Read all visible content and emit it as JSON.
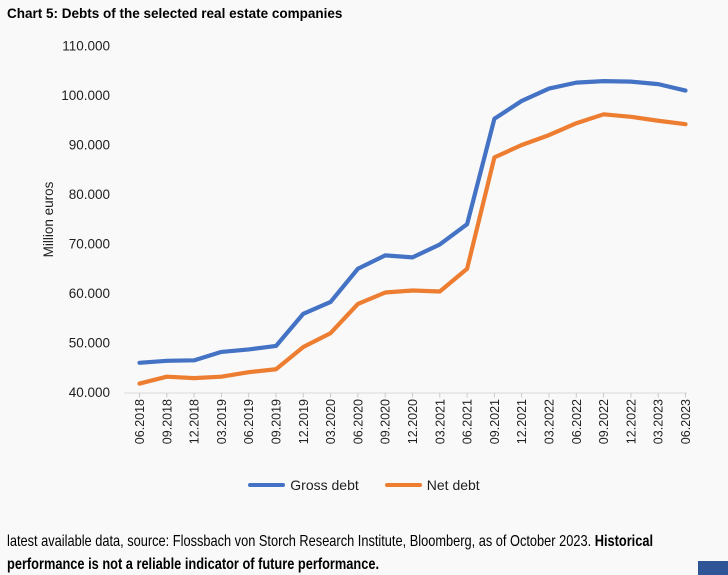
{
  "title": "Chart 5: Debts of the selected real estate companies",
  "chart_data": {
    "type": "line",
    "title": "Chart 5: Debts of the selected real estate companies",
    "xlabel": "",
    "ylabel": "Million euros",
    "ylim": [
      40000,
      110000
    ],
    "y_tick_step": 10000,
    "y_tick_labels": [
      "40.000",
      "50.000",
      "60.000",
      "70.000",
      "80.000",
      "90.000",
      "100.000",
      "110.000"
    ],
    "grid": false,
    "legend_position": "bottom",
    "categories": [
      "06.2018",
      "09.2018",
      "12.2018",
      "03.2019",
      "06.2019",
      "09.2019",
      "12.2019",
      "03.2020",
      "06.2020",
      "09.2020",
      "12.2020",
      "03.2021",
      "06.2021",
      "09.2021",
      "12.2021",
      "03.2022",
      "06.2022",
      "09.2022",
      "12.2022",
      "03.2023",
      "06.2023"
    ],
    "series": [
      {
        "name": "Gross debt",
        "color": "#4472C4",
        "values": [
          46000,
          46400,
          46500,
          48200,
          48700,
          49400,
          55900,
          58300,
          65000,
          67700,
          67300,
          69900,
          74000,
          95300,
          98900,
          101400,
          102600,
          102900,
          102800,
          102300,
          101000
        ]
      },
      {
        "name": "Net debt",
        "color": "#ED7D31",
        "values": [
          41800,
          43200,
          42900,
          43200,
          44100,
          44700,
          49200,
          52000,
          57900,
          60200,
          60600,
          60400,
          65000,
          87500,
          90000,
          92000,
          94400,
          96200,
          95700,
          94900,
          94200
        ]
      }
    ]
  },
  "caption": {
    "prefix": "latest available data, source: Flossbach von Storch Research Institute, Bloomberg, as of October 2023. ",
    "bold_line1": "Historical",
    "bold_line2": "performance is not a reliable indicator of future performance."
  },
  "colors": {
    "text": "#1f1f1f",
    "axis_line": "#d9d9d9",
    "tick": "#c9c9c9",
    "gross_debt": "#4472C4",
    "net_debt": "#ED7D31",
    "corner_block": "#2F5597"
  }
}
